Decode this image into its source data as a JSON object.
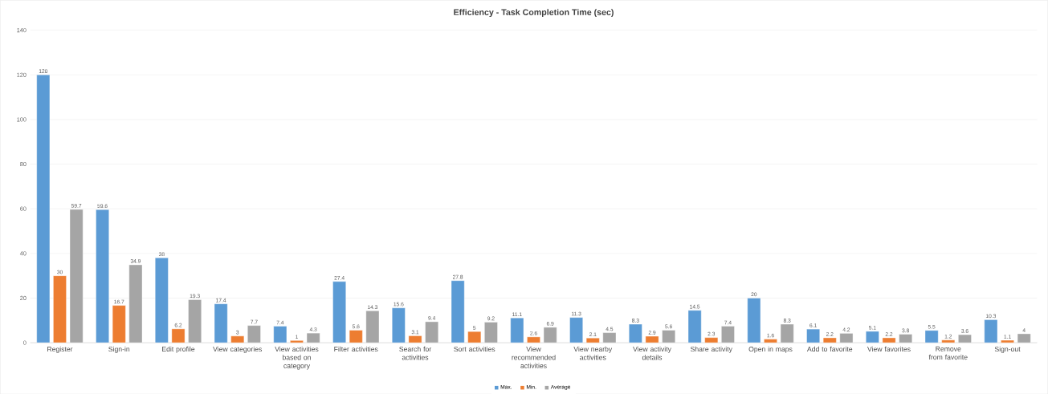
{
  "chart_data": {
    "type": "bar",
    "title": "Efficiency - Task Completion Time (sec)",
    "categories": [
      "Register",
      "Sign-in",
      "Edit profile",
      "View categories",
      "View activities based on category",
      "Filter activities",
      "Search for activities",
      "Sort activities",
      "View recommended activities",
      "View nearby activities",
      "View activity details",
      "Share activity",
      "Open in maps",
      "Add to favorite",
      "View favorites",
      "Remove from favorite",
      "Sign-out"
    ],
    "series": [
      {
        "name": "Max.",
        "color": "#5b9bd5",
        "values": [
          120,
          59.6,
          38,
          17.4,
          7.4,
          27.4,
          15.6,
          27.8,
          11.1,
          11.3,
          8.3,
          14.5,
          20,
          6.1,
          5.1,
          5.5,
          10.3
        ]
      },
      {
        "name": "Min.",
        "color": "#ed7d31",
        "values": [
          30,
          16.7,
          6.2,
          3,
          1,
          5.6,
          3.1,
          5,
          2.6,
          2.1,
          2.9,
          2.3,
          1.6,
          2.2,
          2.2,
          1.2,
          1.1
        ]
      },
      {
        "name": "Average",
        "color": "#a5a5a5",
        "values": [
          59.7,
          34.9,
          19.3,
          7.7,
          4.3,
          14.3,
          9.4,
          9.2,
          6.9,
          4.5,
          5.6,
          7.4,
          8.3,
          4.2,
          3.8,
          3.6,
          4
        ]
      }
    ],
    "ylim": [
      0,
      140
    ],
    "yticks": [
      0,
      20,
      40,
      60,
      80,
      100,
      120,
      140
    ],
    "grid": "y",
    "legend": "bottom",
    "data_labels": true
  }
}
